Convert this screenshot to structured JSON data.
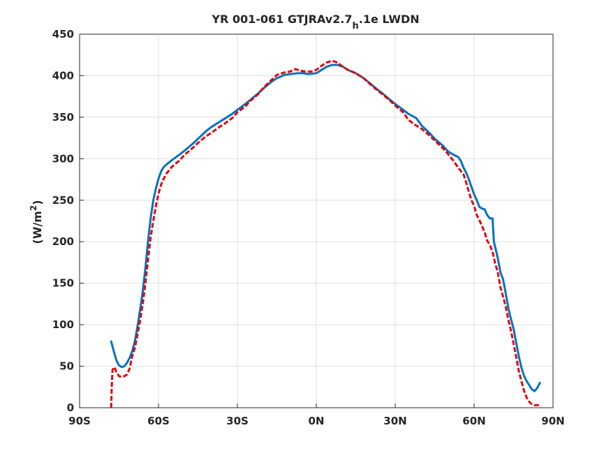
{
  "title": {
    "main": "YR 001-061 GTJRAv2.7",
    "sub": "h",
    "tail": ".1e LWDN"
  },
  "chart_data": {
    "type": "line",
    "title": "YR 001-061 GTJRAv2.7h.1e LWDN",
    "xlabel": "",
    "ylabel": "(W/m2)",
    "ylabel_parts": {
      "pre": "(W/m",
      "sup": "2",
      "post": ")"
    },
    "xlim": [
      -90,
      90
    ],
    "ylim": [
      0,
      450
    ],
    "x_ticks": [
      {
        "value": -90,
        "label": "90S"
      },
      {
        "value": -60,
        "label": "60S"
      },
      {
        "value": -30,
        "label": "30S"
      },
      {
        "value": 0,
        "label": "0N"
      },
      {
        "value": 30,
        "label": "30N"
      },
      {
        "value": 60,
        "label": "60N"
      },
      {
        "value": 90,
        "label": "90N"
      }
    ],
    "y_ticks": [
      0,
      50,
      100,
      150,
      200,
      250,
      300,
      350,
      400,
      450
    ],
    "grid": true,
    "series": [
      {
        "color": "#0072BD",
        "style": "solid",
        "points": [
          [
            -78,
            80
          ],
          [
            -77,
            68
          ],
          [
            -76,
            57
          ],
          [
            -75,
            51
          ],
          [
            -74,
            49
          ],
          [
            -73,
            50
          ],
          [
            -72,
            54
          ],
          [
            -71,
            60
          ],
          [
            -70,
            68
          ],
          [
            -69,
            80
          ],
          [
            -68,
            98
          ],
          [
            -67,
            118
          ],
          [
            -66,
            140
          ],
          [
            -65,
            168
          ],
          [
            -64,
            200
          ],
          [
            -63,
            228
          ],
          [
            -62,
            250
          ],
          [
            -61,
            264
          ],
          [
            -60,
            276
          ],
          [
            -59,
            285
          ],
          [
            -58,
            290
          ],
          [
            -57,
            293
          ],
          [
            -55,
            298
          ],
          [
            -52,
            305
          ],
          [
            -50,
            310
          ],
          [
            -47,
            318
          ],
          [
            -45,
            324
          ],
          [
            -42,
            333
          ],
          [
            -40,
            338
          ],
          [
            -37,
            344
          ],
          [
            -35,
            348
          ],
          [
            -32,
            354
          ],
          [
            -30,
            359
          ],
          [
            -27,
            366
          ],
          [
            -25,
            371
          ],
          [
            -22,
            379
          ],
          [
            -20,
            385
          ],
          [
            -17,
            393
          ],
          [
            -15,
            397
          ],
          [
            -12,
            401
          ],
          [
            -10,
            402
          ],
          [
            -7,
            403
          ],
          [
            -5,
            403
          ],
          [
            -3,
            402
          ],
          [
            0,
            403
          ],
          [
            2,
            407
          ],
          [
            4,
            411
          ],
          [
            6,
            413
          ],
          [
            8,
            413
          ],
          [
            10,
            411
          ],
          [
            12,
            407
          ],
          [
            15,
            403
          ],
          [
            18,
            397
          ],
          [
            20,
            392
          ],
          [
            23,
            384
          ],
          [
            25,
            379
          ],
          [
            28,
            371
          ],
          [
            30,
            366
          ],
          [
            33,
            359
          ],
          [
            35,
            354
          ],
          [
            38,
            349
          ],
          [
            40,
            340
          ],
          [
            43,
            331
          ],
          [
            45,
            324
          ],
          [
            48,
            316
          ],
          [
            50,
            309
          ],
          [
            52,
            305
          ],
          [
            54,
            302
          ],
          [
            55,
            297
          ],
          [
            56,
            289
          ],
          [
            57,
            283
          ],
          [
            58,
            275
          ],
          [
            59,
            266
          ],
          [
            60,
            257
          ],
          [
            61,
            250
          ],
          [
            62,
            242
          ],
          [
            63,
            240
          ],
          [
            64,
            239
          ],
          [
            65,
            232
          ],
          [
            66,
            228
          ],
          [
            67,
            228
          ],
          [
            67.5,
            200
          ],
          [
            68,
            194
          ],
          [
            69,
            180
          ],
          [
            70,
            163
          ],
          [
            71,
            155
          ],
          [
            72,
            138
          ],
          [
            73,
            120
          ],
          [
            74,
            107
          ],
          [
            75,
            95
          ],
          [
            76,
            78
          ],
          [
            77,
            62
          ],
          [
            78,
            48
          ],
          [
            79,
            38
          ],
          [
            80,
            32
          ],
          [
            81,
            27
          ],
          [
            82,
            22
          ],
          [
            83,
            20
          ],
          [
            84,
            24
          ],
          [
            85,
            30
          ]
        ]
      },
      {
        "color": "#E5000B",
        "style": "dashed",
        "points": [
          [
            -78,
            0
          ],
          [
            -77.8,
            25
          ],
          [
            -77.5,
            45
          ],
          [
            -77,
            49
          ],
          [
            -76.5,
            47
          ],
          [
            -76,
            43
          ],
          [
            -75,
            38
          ],
          [
            -74,
            37
          ],
          [
            -73,
            38
          ],
          [
            -72,
            40
          ],
          [
            -71,
            47
          ],
          [
            -70,
            62
          ],
          [
            -69,
            72
          ],
          [
            -68,
            88
          ],
          [
            -67,
            105
          ],
          [
            -66,
            125
          ],
          [
            -65,
            150
          ],
          [
            -64,
            178
          ],
          [
            -63,
            205
          ],
          [
            -62,
            225
          ],
          [
            -61,
            243
          ],
          [
            -60,
            258
          ],
          [
            -59,
            269
          ],
          [
            -58,
            276
          ],
          [
            -57,
            282
          ],
          [
            -55,
            290
          ],
          [
            -52,
            298
          ],
          [
            -50,
            305
          ],
          [
            -47,
            313
          ],
          [
            -45,
            319
          ],
          [
            -42,
            327
          ],
          [
            -40,
            331
          ],
          [
            -37,
            338
          ],
          [
            -35,
            342
          ],
          [
            -32,
            349
          ],
          [
            -30,
            356
          ],
          [
            -27,
            363
          ],
          [
            -25,
            370
          ],
          [
            -22,
            378
          ],
          [
            -20,
            386
          ],
          [
            -17,
            395
          ],
          [
            -15,
            401
          ],
          [
            -12,
            404
          ],
          [
            -10,
            405
          ],
          [
            -8,
            408
          ],
          [
            -6,
            406
          ],
          [
            -4,
            405
          ],
          [
            -2,
            405
          ],
          [
            0,
            407
          ],
          [
            2,
            412
          ],
          [
            4,
            416
          ],
          [
            6,
            418
          ],
          [
            8,
            416
          ],
          [
            10,
            411
          ],
          [
            12,
            407
          ],
          [
            15,
            403
          ],
          [
            18,
            397
          ],
          [
            20,
            391
          ],
          [
            23,
            383
          ],
          [
            25,
            378
          ],
          [
            28,
            370
          ],
          [
            30,
            364
          ],
          [
            33,
            356
          ],
          [
            35,
            347
          ],
          [
            37,
            342
          ],
          [
            40,
            336
          ],
          [
            43,
            328
          ],
          [
            45,
            322
          ],
          [
            48,
            313
          ],
          [
            50,
            306
          ],
          [
            52,
            298
          ],
          [
            54,
            289
          ],
          [
            56,
            281
          ],
          [
            57,
            271
          ],
          [
            58,
            260
          ],
          [
            59,
            250
          ],
          [
            60,
            243
          ],
          [
            61,
            232
          ],
          [
            62,
            226
          ],
          [
            63,
            219
          ],
          [
            64,
            211
          ],
          [
            65,
            201
          ],
          [
            66,
            196
          ],
          [
            67,
            188
          ],
          [
            68,
            174
          ],
          [
            69,
            163
          ],
          [
            70,
            145
          ],
          [
            71,
            134
          ],
          [
            72,
            122
          ],
          [
            73,
            106
          ],
          [
            74,
            93
          ],
          [
            75,
            77
          ],
          [
            76,
            61
          ],
          [
            77,
            44
          ],
          [
            78,
            32
          ],
          [
            79,
            20
          ],
          [
            80,
            12
          ],
          [
            81,
            7
          ],
          [
            82,
            4
          ],
          [
            83,
            3
          ],
          [
            84,
            3
          ],
          [
            85,
            3
          ]
        ]
      }
    ]
  }
}
